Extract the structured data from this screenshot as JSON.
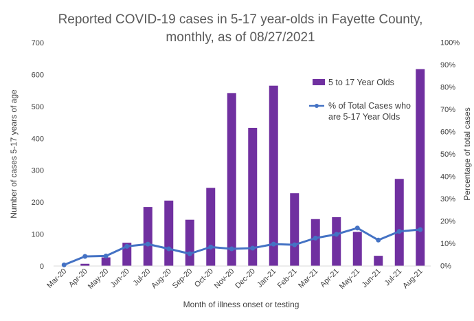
{
  "chart_data": {
    "type": "bar",
    "title": {
      "line1": "Reported COVID-19 cases in 5-17 year-olds in Fayette County,",
      "line2": "monthly, as of 08/27/2021"
    },
    "xlabel": "Month of illness onset or testing",
    "ylabel": "Number of cases 5-17 years of age",
    "y2label": "Percentage of total cases",
    "categories": [
      "Mar-20",
      "Apr-20",
      "May-20",
      "Jun-20",
      "Jul-20",
      "Aug-20",
      "Sep-20",
      "Oct-20",
      "Nov-20",
      "Dec-20",
      "Jan-21",
      "Feb-21",
      "Mar-21",
      "Apr-21",
      "May-21",
      "Jun-21",
      "Jul-21",
      "Aug-21"
    ],
    "ylim": [
      0,
      700
    ],
    "yticks": [
      "0",
      "100",
      "200",
      "300",
      "400",
      "500",
      "600",
      "700"
    ],
    "y2lim": [
      0,
      100
    ],
    "y2ticks": [
      "0%",
      "10%",
      "20%",
      "30%",
      "40%",
      "50%",
      "60%",
      "70%",
      "80%",
      "90%",
      "100%"
    ],
    "series": [
      {
        "name": "5 to 17 Year Olds",
        "kind": "bar",
        "axis": "left",
        "color": "#7030a0",
        "values": [
          0,
          7,
          27,
          73,
          185,
          205,
          145,
          245,
          542,
          433,
          565,
          228,
          147,
          153,
          107,
          32,
          273,
          617
        ]
      },
      {
        "name": "% of Total Cases who are 5-17 Year Olds",
        "legend_lines": [
          "% of Total Cases who",
          "are 5-17 Year Olds"
        ],
        "kind": "line",
        "axis": "right",
        "color": "#4472c4",
        "values": [
          0.5,
          4.3,
          4.5,
          8.8,
          9.8,
          7.7,
          5.5,
          8.5,
          7.7,
          8.0,
          9.8,
          9.5,
          12.5,
          14.2,
          17.0,
          11.6,
          15.5,
          16.3
        ]
      }
    ],
    "grid": false,
    "legend_position": "top-right"
  }
}
